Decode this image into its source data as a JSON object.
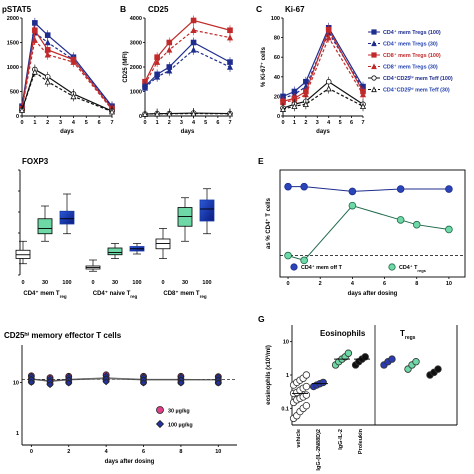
{
  "colors": {
    "navy": "#1f2d8e",
    "red": "#c02a2a",
    "black": "#111111",
    "blue_dash": "#2040b0",
    "mint": "#6ed9a6",
    "magenta": "#e0408a",
    "blue_diamond": "#2233a0"
  },
  "chart_data": [
    {
      "panel": "A",
      "type": "line",
      "title": "pSTAT5",
      "xlabel": "days",
      "ylabel": "",
      "x": [
        0,
        1,
        2,
        4,
        7
      ],
      "xticks": [
        "0",
        "1",
        "2",
        "3",
        "4",
        "5",
        "6",
        "7"
      ],
      "yticks": [
        "0",
        "500",
        "1000",
        "1500",
        "2000"
      ],
      "ylim": [
        0,
        2000
      ],
      "xlim": [
        0,
        7
      ],
      "series": [
        {
          "key": "cd4mem100",
          "values": [
            200,
            1900,
            1650,
            1200,
            200
          ]
        },
        {
          "key": "cd4mem30",
          "values": [
            200,
            1700,
            1500,
            1150,
            180
          ]
        },
        {
          "key": "cd8mem100",
          "values": [
            150,
            1750,
            1350,
            1150,
            150
          ]
        },
        {
          "key": "cd8mem30",
          "values": [
            150,
            1550,
            1250,
            1100,
            130
          ]
        },
        {
          "key": "teff100",
          "values": [
            120,
            950,
            800,
            450,
            100
          ]
        },
        {
          "key": "teff30",
          "values": [
            120,
            900,
            700,
            400,
            90
          ]
        }
      ]
    },
    {
      "panel": "B",
      "type": "line",
      "title": "CD25",
      "xlabel": "days",
      "ylabel": "CD25 (MFI)",
      "x": [
        0,
        1,
        2,
        4,
        7
      ],
      "xticks": [
        "0",
        "1",
        "2",
        "3",
        "4",
        "5",
        "6",
        "7"
      ],
      "yticks": [
        "0",
        "1000",
        "2000",
        "3000",
        "4000"
      ],
      "ylim": [
        0,
        4000
      ],
      "xlim": [
        0,
        7
      ],
      "series": [
        {
          "key": "cd8mem100",
          "values": [
            1400,
            2400,
            3000,
            3900,
            3500
          ]
        },
        {
          "key": "cd8mem30",
          "values": [
            1300,
            2200,
            2700,
            3500,
            3200
          ]
        },
        {
          "key": "cd4mem100",
          "values": [
            1200,
            1700,
            2000,
            3000,
            2200
          ]
        },
        {
          "key": "cd4mem30",
          "values": [
            1150,
            1600,
            1850,
            2700,
            2000
          ]
        },
        {
          "key": "teff100",
          "values": [
            80,
            100,
            100,
            120,
            100
          ]
        },
        {
          "key": "teff30",
          "values": [
            80,
            90,
            95,
            100,
            95
          ]
        }
      ]
    },
    {
      "panel": "C",
      "type": "line",
      "title": "Ki-67",
      "xlabel": "days",
      "ylabel": "% Ki-67⁺ cells",
      "x": [
        0,
        1,
        2,
        4,
        7
      ],
      "xticks": [
        "0",
        "1",
        "2",
        "3",
        "4",
        "5",
        "6",
        "7"
      ],
      "yticks": [
        "0",
        "20",
        "40",
        "60",
        "80",
        "100"
      ],
      "ylim": [
        0,
        100
      ],
      "xlim": [
        0,
        7
      ],
      "series": [
        {
          "key": "cd4mem100",
          "values": [
            20,
            25,
            35,
            90,
            30
          ]
        },
        {
          "key": "cd4mem30",
          "values": [
            18,
            22,
            30,
            85,
            28
          ]
        },
        {
          "key": "cd8mem100",
          "values": [
            15,
            18,
            25,
            88,
            25
          ]
        },
        {
          "key": "cd8mem30",
          "values": [
            14,
            16,
            22,
            80,
            22
          ]
        },
        {
          "key": "teff100",
          "values": [
            8,
            12,
            15,
            35,
            12
          ]
        },
        {
          "key": "teff30",
          "values": [
            7,
            10,
            12,
            28,
            10
          ]
        }
      ],
      "legend": [
        {
          "key": "cd4mem100",
          "label": "CD4⁺ mem Tregs (100)"
        },
        {
          "key": "cd4mem30",
          "label": "CD4⁺ mem Tregs (30)"
        },
        {
          "key": "cd8mem100",
          "label": "CD8⁺ mem Tregs (100)"
        },
        {
          "key": "cd8mem30",
          "label": "CD8⁺ mem Tregs (30)"
        },
        {
          "key": "teff100",
          "label": "CD4⁺CD25ʰⁱ mem Teff (100)"
        },
        {
          "key": "teff30",
          "label": "CD4⁺CD25ʰⁱ mem Teff (30)"
        }
      ]
    },
    {
      "panel": "D",
      "type": "box",
      "title": "FOXP3",
      "groups": [
        {
          "label": "CD4⁺ mem T",
          "sub": "reg",
          "ticks": [
            "0",
            "30",
            "100"
          ]
        },
        {
          "label": "CD4⁺ naive T",
          "sub": "reg",
          "ticks": [
            "0",
            "30",
            "100"
          ]
        },
        {
          "label": "CD8⁺ mem T",
          "sub": "reg",
          "ticks": [
            "0",
            "30",
            "100"
          ]
        }
      ],
      "boxes": [
        {
          "group": 0,
          "dose": "0",
          "min": 15,
          "q1": 22,
          "med": 27,
          "q3": 33,
          "max": 45
        },
        {
          "group": 0,
          "dose": "30",
          "min": 45,
          "q1": 55,
          "med": 62,
          "q3": 75,
          "max": 92
        },
        {
          "group": 0,
          "dose": "100",
          "min": 55,
          "q1": 68,
          "med": 75,
          "q3": 85,
          "max": 108
        },
        {
          "group": 1,
          "dose": "0",
          "min": 5,
          "q1": 8,
          "med": 10,
          "q3": 12,
          "max": 20
        },
        {
          "group": 1,
          "dose": "30",
          "min": 22,
          "q1": 27,
          "med": 30,
          "q3": 36,
          "max": 42
        },
        {
          "group": 1,
          "dose": "100",
          "min": 28,
          "q1": 32,
          "med": 35,
          "q3": 38,
          "max": 42
        },
        {
          "group": 2,
          "dose": "0",
          "min": 22,
          "q1": 35,
          "med": 42,
          "q3": 48,
          "max": 62
        },
        {
          "group": 2,
          "dose": "30",
          "min": 45,
          "q1": 65,
          "med": 78,
          "q3": 90,
          "max": 103
        },
        {
          "group": 2,
          "dose": "100",
          "min": 55,
          "q1": 72,
          "med": 88,
          "q3": 100,
          "max": 115
        }
      ],
      "ylim": [
        0,
        140
      ]
    },
    {
      "panel": "E",
      "type": "line",
      "ylabel": "as % CD4⁺ T cells",
      "xlabel": "days after dosing",
      "xticks": [
        "0",
        "2",
        "4",
        "6",
        "8",
        "10"
      ],
      "xlim": [
        -0.5,
        11
      ],
      "ylim": [
        0,
        45
      ],
      "baseline": 9,
      "series": [
        {
          "key": "cd4memoff",
          "label": "CD4⁺ mem off T",
          "x": [
            0,
            1,
            4,
            7,
            10
          ],
          "values": [
            38,
            38,
            36,
            37,
            37
          ]
        },
        {
          "key": "cd4treg",
          "label": "CD4⁺ T",
          "sub": "regs",
          "x": [
            0,
            1,
            4,
            7,
            8,
            10
          ],
          "values": [
            9,
            7,
            30,
            24,
            22,
            20
          ]
        }
      ]
    },
    {
      "panel": "F",
      "type": "line",
      "title": "CD25ʰⁱ memory effector T cells",
      "xlabel": "days after dosing",
      "xticks": [
        "0",
        "2",
        "4",
        "6",
        "8",
        "10"
      ],
      "yticks": [
        "10",
        "1"
      ],
      "xlim": [
        -0.5,
        11
      ],
      "scale": "log",
      "legend": [
        {
          "key": "dose30",
          "label": "30 µg/kg"
        },
        {
          "key": "dose100",
          "label": "100 µg/kg"
        }
      ],
      "series": [
        {
          "key": "dose30",
          "x": [
            0,
            1,
            2,
            4,
            6,
            8,
            10
          ],
          "values": [
            20,
            14,
            18,
            24,
            18,
            18,
            17
          ]
        },
        {
          "key": "dose100",
          "x": [
            0,
            1,
            2,
            4,
            6,
            8,
            10
          ],
          "values": [
            18,
            12,
            16,
            20,
            16,
            16,
            16
          ]
        }
      ]
    },
    {
      "panel": "G",
      "type": "scatter",
      "title_left": "Eosinophils",
      "title_right": "T",
      "title_right_sub": "regs",
      "ylabel": "eosinophils (x10³/ml)",
      "yticks": [
        "10",
        "1",
        "0.1"
      ],
      "scale": "log",
      "categories": [
        "vehicle",
        "IgG-(IL-2N88D)2",
        "IgG-IL-2",
        "Proleukin"
      ],
      "eos_points": [
        {
          "cat": 0,
          "values": [
            0.05,
            0.06,
            0.08,
            0.1,
            0.12,
            0.15,
            0.18,
            0.2,
            0.22,
            0.25,
            0.28,
            0.3,
            0.35,
            0.4,
            0.45,
            0.5,
            0.6,
            0.7,
            0.8,
            1.0
          ]
        },
        {
          "cat": 1,
          "values": [
            0.45,
            0.5,
            0.55,
            0.6
          ]
        },
        {
          "cat": 2,
          "values": [
            2.0,
            2.5,
            3.0,
            3.5,
            4.5
          ]
        },
        {
          "cat": 3,
          "values": [
            2.0,
            2.5,
            3.0,
            3.5
          ]
        }
      ],
      "treg_points": [
        {
          "cat": 1,
          "values": [
            0.02,
            0.025,
            0.03
          ]
        },
        {
          "cat": 2,
          "values": [
            0.015,
            0.02,
            0.025
          ]
        },
        {
          "cat": 3,
          "values": [
            0.01,
            0.012,
            0.015
          ]
        }
      ]
    }
  ],
  "text": {
    "panel_b": "B",
    "panel_c": "C",
    "panel_e": "E",
    "panel_g": "G"
  }
}
